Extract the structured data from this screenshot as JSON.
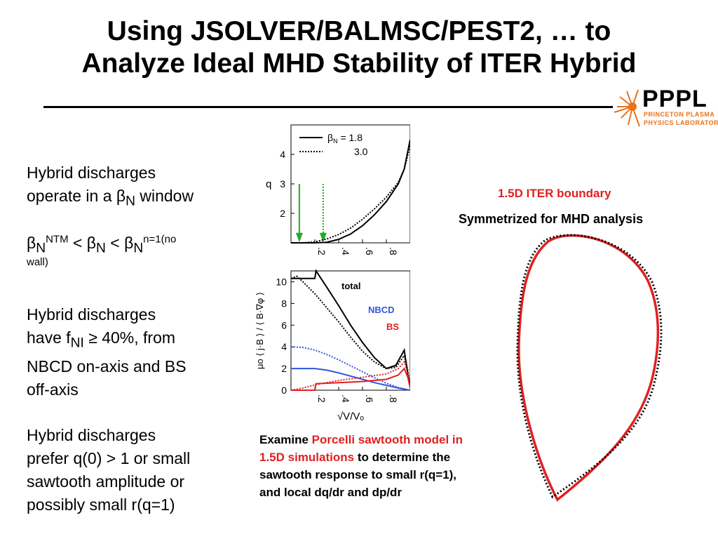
{
  "title": {
    "line1": "Using JSOLVER/BALMSC/PEST2, … to",
    "line2": "Analyze Ideal MHD Stability of ITER Hybrid"
  },
  "logo": {
    "brand": "PPPL",
    "sub1": "PRINCETON PLASMA",
    "sub2": "PHYSICS LABORATORY"
  },
  "bullets": {
    "b1": {
      "line1": "Hybrid discharges",
      "line2_pre": "operate in a ",
      "beta": "β",
      "sub": "N",
      "line2_post": " window"
    },
    "b2": {
      "beta": "β",
      "sub": "N",
      "sup1": "NTM",
      "lt": " < ",
      "sup3": "n=1(no",
      "wall": "wall)"
    },
    "b3": {
      "line1": "Hybrid discharges",
      "line2_pre": "have f",
      "sub": "NI",
      "line2_post": " ≥ 40%, from",
      "line3": "NBCD on-axis and BS",
      "line4": "off-axis"
    },
    "b4": {
      "line1": "Hybrid discharges",
      "line2": "prefer q(0) > 1 or small",
      "line3": "sawtooth amplitude or",
      "line4": "possibly small r(q=1)"
    }
  },
  "caption": {
    "lead": "Examine ",
    "red": "Porcelli sawtooth model in 1.5D simulations",
    "rest": "to determine the sawtooth response to small r(q=1), and local dq/dr and dp/dr"
  },
  "boundary": {
    "label_red": "1.5D ITER boundary",
    "label_black": "Symmetrized for MHD analysis",
    "red_color": "#e02020",
    "dotted_color": "#000000"
  },
  "chart_data": [
    {
      "type": "line",
      "ylabel": "q",
      "ylim": [
        1,
        5
      ],
      "xlim": [
        0,
        1
      ],
      "yticks": [
        "2",
        "3",
        "4"
      ],
      "xticks": [
        ".2",
        ".4",
        ".6",
        ".8",
        "1.0"
      ],
      "legend": [
        "βN = 1.8",
        "3.0"
      ],
      "legend_beta": "β",
      "legend_sub": "N",
      "legend_eq": " = 1.8",
      "legend_b": "3.0",
      "series": [
        {
          "name": "βN = 1.8",
          "style": "solid",
          "x": [
            0.0,
            0.1,
            0.2,
            0.3,
            0.4,
            0.5,
            0.6,
            0.7,
            0.8,
            0.9,
            0.95,
            1.0
          ],
          "y": [
            1.0,
            1.0,
            1.0,
            1.02,
            1.12,
            1.3,
            1.58,
            1.95,
            2.4,
            3.0,
            3.5,
            4.5
          ]
        },
        {
          "name": "3.0",
          "style": "dotted",
          "x": [
            0.0,
            0.1,
            0.2,
            0.3,
            0.4,
            0.5,
            0.6,
            0.7,
            0.8,
            0.9,
            0.95,
            1.0
          ],
          "y": [
            1.0,
            1.0,
            1.03,
            1.13,
            1.28,
            1.5,
            1.8,
            2.15,
            2.55,
            3.05,
            3.5,
            4.3
          ]
        }
      ],
      "arrows": [
        {
          "x": 0.07,
          "style": "solid",
          "color": "#22aa22"
        },
        {
          "x": 0.27,
          "style": "dotted",
          "color": "#22aa22"
        }
      ]
    },
    {
      "type": "line",
      "ylabel": "μo ⟨ j·B ⟩ / ⟨ B·∇φ ⟩",
      "xlabel": "√V/Vₒ",
      "ylim": [
        0,
        11
      ],
      "xlim": [
        0,
        1
      ],
      "yticks": [
        "0",
        "2",
        "4",
        "6",
        "8",
        "10"
      ],
      "xticks": [
        ".2",
        ".4",
        ".6",
        ".8",
        "1.0"
      ],
      "labels": {
        "total": "total",
        "nbcd": "NBCD",
        "bs": "BS"
      },
      "colors": {
        "total": "#000000",
        "nbcd": "#3355dd",
        "bs": "#e02020"
      },
      "series": [
        {
          "name": "total",
          "style": "solid",
          "color": "#000000",
          "x": [
            0.0,
            0.2,
            0.21,
            0.3,
            0.4,
            0.5,
            0.6,
            0.7,
            0.8,
            0.88,
            0.95,
            0.98,
            1.0
          ],
          "y": [
            10.3,
            10.3,
            11.0,
            9.5,
            7.8,
            6.0,
            4.4,
            3.0,
            2.0,
            2.3,
            3.7,
            1.5,
            0.3
          ]
        },
        {
          "name": "total",
          "style": "dotted",
          "color": "#000000",
          "x": [
            0.0,
            0.05,
            0.1,
            0.2,
            0.3,
            0.4,
            0.5,
            0.6,
            0.7,
            0.8,
            0.88,
            0.95,
            0.98,
            1.0
          ],
          "y": [
            10.3,
            10.5,
            10.0,
            8.9,
            7.6,
            6.3,
            4.9,
            3.6,
            2.6,
            2.0,
            2.1,
            3.2,
            1.8,
            0.3
          ]
        },
        {
          "name": "NBCD",
          "style": "solid",
          "color": "#3355dd",
          "x": [
            0.0,
            0.2,
            0.3,
            0.4,
            0.5,
            0.6,
            0.7,
            0.8,
            0.9,
            1.0
          ],
          "y": [
            2.0,
            2.0,
            1.85,
            1.6,
            1.3,
            1.0,
            0.7,
            0.45,
            0.2,
            0.0
          ]
        },
        {
          "name": "NBCD",
          "style": "dotted",
          "color": "#3355dd",
          "x": [
            0.0,
            0.1,
            0.2,
            0.3,
            0.4,
            0.5,
            0.6,
            0.7,
            0.8,
            0.9,
            1.0
          ],
          "y": [
            4.0,
            3.95,
            3.7,
            3.3,
            2.8,
            2.25,
            1.7,
            1.15,
            0.65,
            0.25,
            0.0
          ]
        },
        {
          "name": "BS",
          "style": "solid",
          "color": "#e02020",
          "x": [
            0.0,
            0.2,
            0.21,
            0.4,
            0.6,
            0.8,
            0.9,
            0.95,
            0.98,
            1.0
          ],
          "y": [
            0.0,
            0.0,
            0.6,
            0.7,
            0.8,
            1.0,
            1.4,
            2.0,
            1.2,
            0.2
          ]
        },
        {
          "name": "BS",
          "style": "dotted",
          "color": "#e02020",
          "x": [
            0.0,
            0.1,
            0.2,
            0.4,
            0.6,
            0.8,
            0.9,
            0.95,
            0.98,
            1.0
          ],
          "y": [
            0.0,
            0.2,
            0.5,
            0.9,
            1.2,
            1.5,
            2.0,
            2.6,
            1.6,
            0.2
          ]
        }
      ]
    }
  ]
}
